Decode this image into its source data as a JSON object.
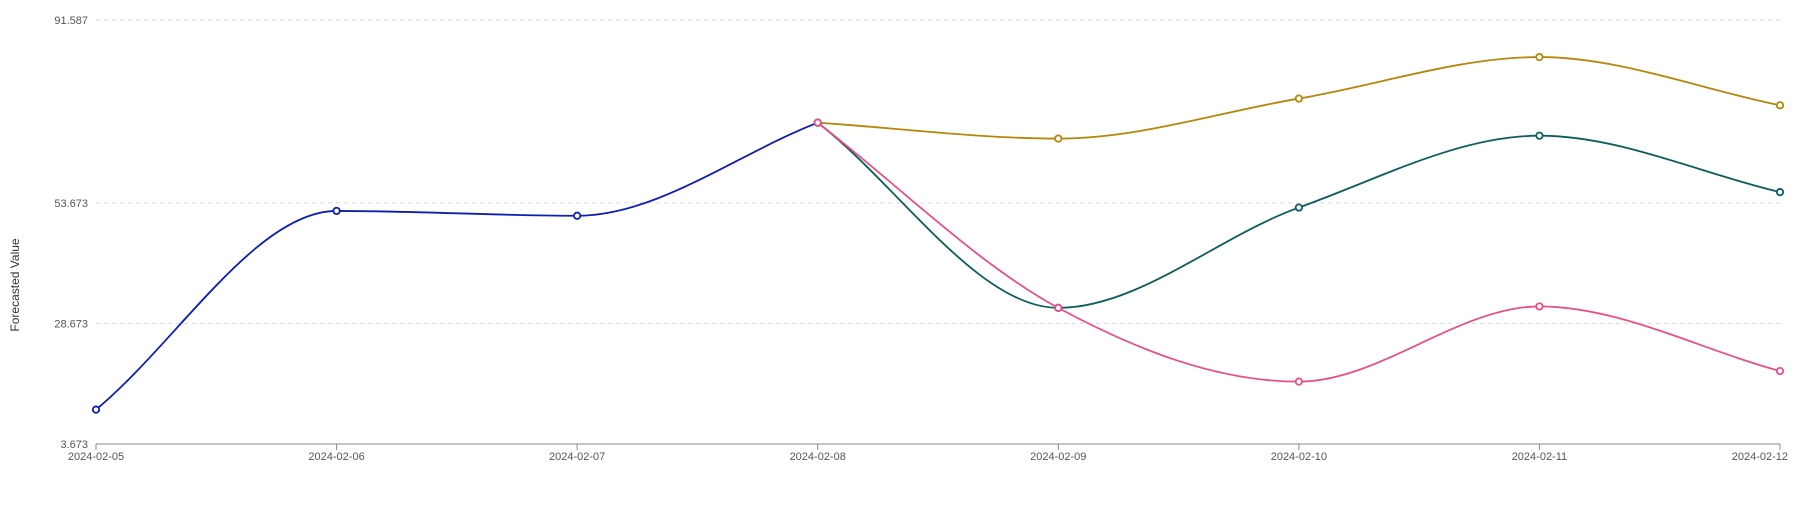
{
  "chart_data": {
    "type": "line",
    "xlabel": "",
    "ylabel": "Forecasted Value",
    "x": [
      "2024-02-05",
      "2024-02-06",
      "2024-02-07",
      "2024-02-08",
      "2024-02-09",
      "2024-02-10",
      "2024-02-11",
      "2024-02-12"
    ],
    "ylim": [
      3.673,
      91.587
    ],
    "yticks": [
      "3.673",
      "28.673",
      "53.673",
      "91.587"
    ],
    "grid": true,
    "series": [
      {
        "color": "#0d1fb3",
        "points": [
          {
            "x": "2024-02-05",
            "y": 10.8
          },
          {
            "x": "2024-02-06",
            "y": 52.0
          },
          {
            "x": "2024-02-07",
            "y": 51.0
          },
          {
            "x": "2024-02-08",
            "y": 70.3
          }
        ]
      },
      {
        "color": "#b8860b",
        "points": [
          {
            "x": "2024-02-08",
            "y": 70.3
          },
          {
            "x": "2024-02-09",
            "y": 67.0
          },
          {
            "x": "2024-02-10",
            "y": 75.3
          },
          {
            "x": "2024-02-11",
            "y": 83.9
          },
          {
            "x": "2024-02-12",
            "y": 73.9
          }
        ]
      },
      {
        "color": "#0b5e5e",
        "points": [
          {
            "x": "2024-02-08",
            "y": 70.3
          },
          {
            "x": "2024-02-09",
            "y": 31.9
          },
          {
            "x": "2024-02-10",
            "y": 52.7
          },
          {
            "x": "2024-02-11",
            "y": 67.6
          },
          {
            "x": "2024-02-12",
            "y": 55.9
          }
        ]
      },
      {
        "color": "#e8508a",
        "points": [
          {
            "x": "2024-02-08",
            "y": 70.3
          },
          {
            "x": "2024-02-09",
            "y": 31.9
          },
          {
            "x": "2024-02-10",
            "y": 16.6
          },
          {
            "x": "2024-02-11",
            "y": 32.2
          },
          {
            "x": "2024-02-12",
            "y": 18.8
          }
        ]
      }
    ]
  }
}
